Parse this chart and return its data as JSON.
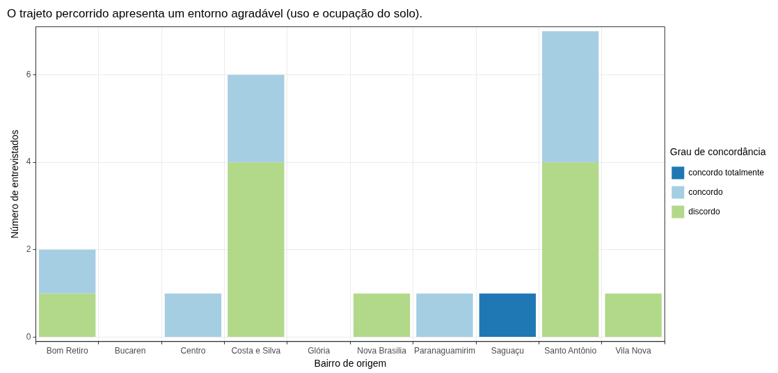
{
  "chart_data": {
    "type": "bar",
    "title": "O trajeto percorrido apresenta um entorno agradável (uso e ocupação do solo).",
    "xlabel": "Bairro de origem",
    "ylabel": "Número de entrevistados",
    "legend_title": "Grau de concordância",
    "categories": [
      "Bom Retiro",
      "Bucaren",
      "Centro",
      "Costa e Silva",
      "Glória",
      "Nova Brasilia",
      "Paranaguamirim",
      "Saguaçu",
      "Santo Antônio",
      "Vila Nova"
    ],
    "stacked": true,
    "series": [
      {
        "name": "discordo",
        "color": "#b2d98a",
        "values": [
          1,
          null,
          null,
          4,
          null,
          1,
          null,
          null,
          4,
          1
        ]
      },
      {
        "name": "concordo",
        "color": "#a6cee3",
        "values": [
          1,
          null,
          1,
          2,
          null,
          null,
          1,
          null,
          3,
          null
        ]
      },
      {
        "name": "concordo totalmente",
        "color": "#1f78b4",
        "values": [
          null,
          null,
          null,
          null,
          null,
          null,
          null,
          1,
          null,
          null
        ]
      }
    ],
    "ylim": [
      -0.1,
      7.1
    ],
    "yticks": [
      0,
      2,
      4,
      6
    ],
    "grid": true,
    "legend": "right"
  }
}
